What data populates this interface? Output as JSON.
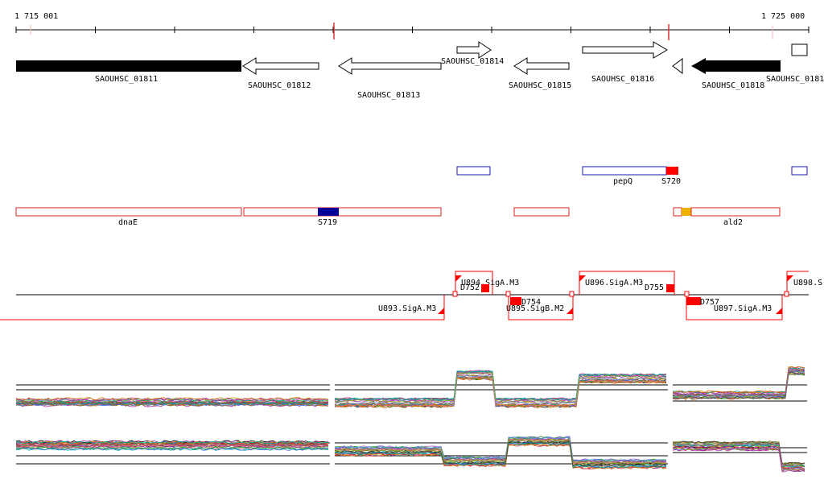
{
  "ruler": {
    "start_label": "1 715 001",
    "end_label": "1 725 000"
  },
  "colors": {
    "cds_fill": "#000000",
    "cds_open": "#ffffff",
    "operon_blue": "#1a1aaa",
    "operon_red": "#dd2222",
    "marker_red": "#ff0000",
    "spot_blue": "#000099",
    "spot_yellow": "#f0b000"
  },
  "genes": {
    "g1": "SAOUHSC_01811",
    "g2": "SAOUHSC_01812",
    "g3": "SAOUHSC_01813",
    "g4": "SAOUHSC_01814",
    "g5": "SAOUHSC_01815",
    "g6": "SAOUHSC_01816",
    "g7": "SAOUHSC_01818",
    "g8": "SAOUHSC_0181"
  },
  "annotations": {
    "pepq": "pepQ",
    "s720": "S720",
    "dnae": "dnaE",
    "s719": "S719",
    "ald2": "ald2"
  },
  "promoters": {
    "p893": "U893.SigA.M3",
    "p894": "U894.SigA.M3",
    "p895": "U895.SigB.M2",
    "p896": "U896.SigA.M3",
    "p897": "U897.SigA.M3",
    "p898": "U898.S",
    "d752": "D752",
    "d754": "D754",
    "d755": "D755",
    "d757": "D757"
  }
}
